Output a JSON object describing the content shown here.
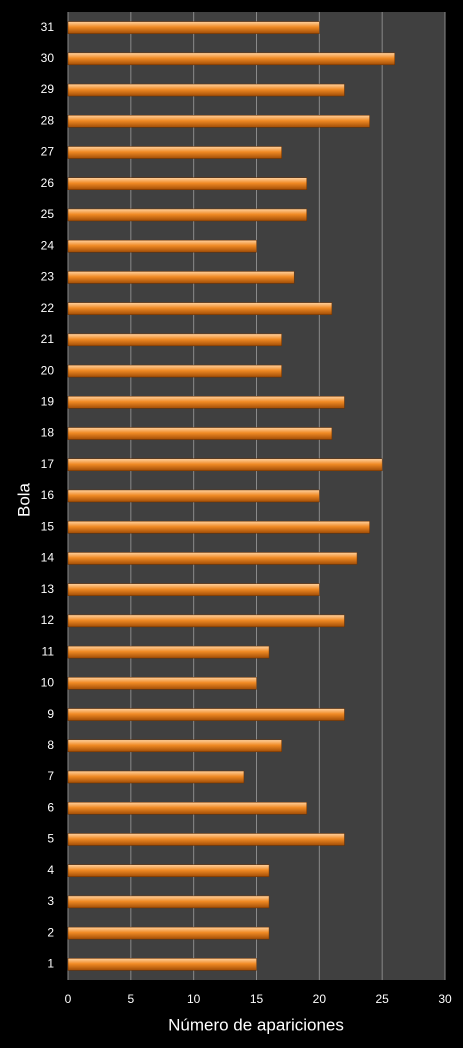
{
  "chart_data": {
    "type": "hbar",
    "xlabel": "Número de apariciones",
    "ylabel": "Bola",
    "categories": [
      "1",
      "2",
      "3",
      "4",
      "5",
      "6",
      "7",
      "8",
      "9",
      "10",
      "11",
      "12",
      "13",
      "14",
      "15",
      "16",
      "17",
      "18",
      "19",
      "20",
      "21",
      "22",
      "23",
      "24",
      "25",
      "26",
      "27",
      "28",
      "29",
      "30",
      "31"
    ],
    "values": [
      15,
      16,
      16,
      16,
      22,
      19,
      14,
      17,
      22,
      15,
      16,
      22,
      20,
      23,
      24,
      20,
      25,
      21,
      22,
      17,
      17,
      21,
      18,
      15,
      19,
      19,
      17,
      24,
      22,
      26,
      20
    ],
    "color": "#f08a24",
    "xlim": [
      0,
      30
    ],
    "xticks": [
      0,
      5,
      10,
      15,
      20,
      25,
      30
    ],
    "grid": true
  }
}
